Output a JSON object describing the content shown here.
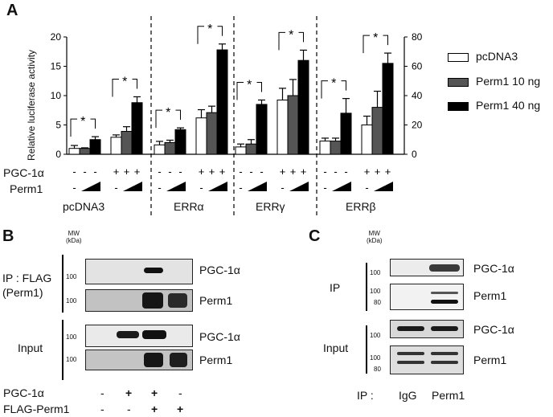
{
  "panels": {
    "A": {
      "letter": "A"
    },
    "B": {
      "letter": "B"
    },
    "C": {
      "letter": "C"
    }
  },
  "chart_data": {
    "type": "bar",
    "title": "",
    "ylabel": "Relative luciferase activity",
    "left_axis": {
      "ylim": [
        0,
        20
      ],
      "ticks": [
        "0",
        "5",
        "10",
        "15",
        "20"
      ],
      "applies_to": [
        "pcDNA3",
        "ERRα"
      ]
    },
    "right_axis": {
      "ylim": [
        0,
        80
      ],
      "ticks": [
        "0",
        "20",
        "40",
        "60",
        "80"
      ],
      "applies_to": [
        "ERRγ",
        "ERRβ"
      ]
    },
    "legend": [
      "pcDNA3",
      "Perm1 10 ng",
      "Perm1 40 ng"
    ],
    "legend_position": "right",
    "series_colors": [
      "#ffffff",
      "#555555",
      "#000000"
    ],
    "groups": [
      {
        "name": "pcDNA3",
        "axis": "left",
        "minus_pgc": {
          "values": [
            1.0,
            1.0,
            2.5
          ],
          "errors": [
            0.5,
            0.1,
            0.5
          ]
        },
        "plus_pgc": {
          "values": [
            2.9,
            3.9,
            8.8
          ],
          "errors": [
            0.4,
            0.8,
            1.0
          ]
        }
      },
      {
        "name": "ERRα",
        "axis": "left",
        "minus_pgc": {
          "values": [
            1.6,
            2.0,
            4.2
          ],
          "errors": [
            0.6,
            0.4,
            0.3
          ]
        },
        "plus_pgc": {
          "values": [
            6.2,
            7.1,
            17.8
          ],
          "errors": [
            1.4,
            1.1,
            1.0
          ]
        }
      },
      {
        "name": "ERRγ",
        "axis": "right",
        "minus_pgc": {
          "values": [
            5,
            7,
            34
          ],
          "errors": [
            2,
            3,
            3
          ]
        },
        "plus_pgc": {
          "values": [
            37,
            40,
            64
          ],
          "errors": [
            8,
            11,
            7
          ]
        }
      },
      {
        "name": "ERRβ",
        "axis": "right",
        "minus_pgc": {
          "values": [
            9,
            9,
            28
          ],
          "errors": [
            2,
            2,
            10
          ]
        },
        "plus_pgc": {
          "values": [
            20,
            32,
            62
          ],
          "errors": [
            6,
            11,
            7
          ]
        }
      }
    ],
    "annotations": [
      "*",
      "*",
      "*",
      "*",
      "*",
      "*",
      "*",
      "*"
    ],
    "grid": false,
    "row_labels": {
      "pgc": "PGC-1α",
      "perm1": "Perm1"
    },
    "pgc_signs": [
      "-",
      "-",
      "-",
      "+",
      "+",
      "+"
    ],
    "perm1_signs": [
      "-",
      "ramp",
      "-",
      "ramp"
    ]
  },
  "blot_B": {
    "mw_label": "MW",
    "mw_unit": "(kDa)",
    "ip_label_line1": "IP : FLAG",
    "ip_label_line2": "(Perm1)",
    "input_label": "Input",
    "rows": [
      {
        "label": "PGC-1α",
        "marker": "100"
      },
      {
        "label": "Perm1",
        "marker": "100"
      },
      {
        "label": "PGC-1α",
        "marker": "100"
      },
      {
        "label": "Perm1",
        "marker": "100"
      }
    ],
    "conditions": {
      "pgc_label": "PGC-1α",
      "flag_label": "FLAG-Perm1",
      "pgc": [
        "-",
        "+",
        "+",
        "-"
      ],
      "flag": [
        "-",
        "-",
        "+",
        "+"
      ]
    }
  },
  "blot_C": {
    "mw_label": "MW",
    "mw_unit": "(kDa)",
    "ip_label": "IP",
    "input_label": "Input",
    "rows": [
      {
        "label": "PGC-1α",
        "markers": [
          "100"
        ]
      },
      {
        "label": "Perm1",
        "markers": [
          "100",
          "80"
        ]
      },
      {
        "label": "PGC-1α",
        "markers": [
          "100"
        ]
      },
      {
        "label": "Perm1",
        "markers": [
          "100",
          "80"
        ]
      }
    ],
    "ip_row_label": "IP :",
    "lanes": [
      "IgG",
      "Perm1"
    ]
  }
}
